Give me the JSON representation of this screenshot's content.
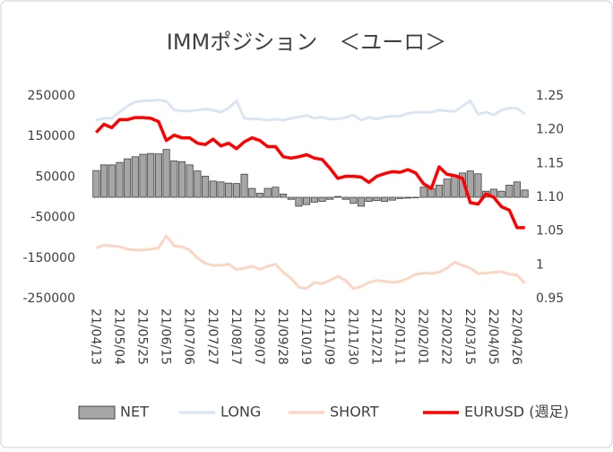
{
  "chart_data": {
    "type": "bar-line",
    "title": "IMMポジション　＜ユーロ＞",
    "categories": [
      "21/04/13",
      null,
      null,
      "21/05/04",
      null,
      null,
      "21/05/25",
      null,
      null,
      "21/06/15",
      null,
      null,
      "21/07/06",
      null,
      null,
      "21/07/27",
      null,
      null,
      "21/08/17",
      null,
      null,
      "21/09/07",
      null,
      null,
      "21/09/28",
      null,
      null,
      "21/10/19",
      null,
      null,
      "21/11/09",
      null,
      null,
      "21/11/30",
      null,
      null,
      "21/12/21",
      null,
      null,
      "22/01/11",
      null,
      null,
      "22/02/01",
      null,
      null,
      "22/02/22",
      null,
      null,
      "22/03/15",
      null,
      null,
      "22/04/05",
      null,
      null,
      "22/04/26",
      null
    ],
    "series": [
      {
        "name": "NET",
        "kind": "bar",
        "color": "#a6a6a6",
        "values": [
          66000,
          80000,
          80000,
          86000,
          95000,
          100000,
          106000,
          108000,
          107000,
          118000,
          90000,
          88000,
          80000,
          65000,
          52000,
          40000,
          38000,
          35000,
          34000,
          57000,
          22000,
          10000,
          22000,
          25000,
          8000,
          -5000,
          -22000,
          -18000,
          -12000,
          -10000,
          -5000,
          2000,
          -5000,
          -15000,
          -22000,
          -10000,
          -8000,
          -10000,
          -7000,
          -3000,
          -2000,
          0,
          25000,
          22000,
          30000,
          45000,
          55000,
          60000,
          65000,
          58000,
          15000,
          20000,
          15000,
          30000,
          38000,
          18000
        ]
      },
      {
        "name": "LONG",
        "kind": "line",
        "color": "#dce6f2",
        "values": [
          190000,
          195000,
          195000,
          210000,
          225000,
          235000,
          238000,
          238000,
          240000,
          237000,
          215000,
          213000,
          213000,
          215000,
          218000,
          215000,
          210000,
          220000,
          238000,
          195000,
          193000,
          193000,
          190000,
          193000,
          190000,
          195000,
          198000,
          202000,
          195000,
          198000,
          193000,
          193000,
          197000,
          203000,
          190000,
          197000,
          193000,
          198000,
          200000,
          200000,
          207000,
          210000,
          210000,
          210000,
          215000,
          213000,
          212000,
          225000,
          238000,
          205000,
          210000,
          203000,
          215000,
          220000,
          220000,
          205000
        ]
      },
      {
        "name": "SHORT",
        "kind": "line",
        "color": "#fbd5c5",
        "values": [
          -125000,
          -118000,
          -120000,
          -122000,
          -128000,
          -130000,
          -130000,
          -128000,
          -125000,
          -95000,
          -120000,
          -122000,
          -130000,
          -150000,
          -163000,
          -168000,
          -168000,
          -165000,
          -178000,
          -175000,
          -170000,
          -178000,
          -170000,
          -165000,
          -185000,
          -200000,
          -222000,
          -225000,
          -210000,
          -213000,
          -205000,
          -195000,
          -205000,
          -225000,
          -220000,
          -210000,
          -205000,
          -207000,
          -210000,
          -207000,
          -200000,
          -190000,
          -187000,
          -188000,
          -185000,
          -175000,
          -160000,
          -168000,
          -175000,
          -188000,
          -187000,
          -185000,
          -183000,
          -190000,
          -192000,
          -212000
        ]
      },
      {
        "name": "EURUSD (週足)",
        "kind": "line",
        "axis": "y2",
        "color": "#ff0000",
        "values": [
          1.196,
          1.208,
          1.203,
          1.215,
          1.215,
          1.218,
          1.218,
          1.217,
          1.212,
          1.184,
          1.192,
          1.188,
          1.188,
          1.18,
          1.178,
          1.186,
          1.176,
          1.18,
          1.172,
          1.182,
          1.188,
          1.184,
          1.175,
          1.175,
          1.16,
          1.158,
          1.16,
          1.163,
          1.158,
          1.156,
          1.143,
          1.128,
          1.131,
          1.131,
          1.13,
          1.122,
          1.131,
          1.135,
          1.138,
          1.137,
          1.141,
          1.136,
          1.12,
          1.113,
          1.145,
          1.134,
          1.132,
          1.128,
          1.092,
          1.09,
          1.105,
          1.1,
          1.086,
          1.081,
          1.055,
          1.055
        ]
      }
    ],
    "ylim": [
      -250000,
      250000
    ],
    "yticks": [
      -250000,
      -150000,
      -50000,
      50000,
      150000,
      250000
    ],
    "y2lim": [
      0.95,
      1.25
    ],
    "y2ticks": [
      {
        "value": 0.95,
        "label": "0.95"
      },
      1,
      {
        "value": 1.05,
        "label": "1.05"
      },
      {
        "value": 1.1,
        "label": "1.10"
      },
      {
        "value": 1.15,
        "label": "1.15"
      },
      {
        "value": 1.2,
        "label": "1.20"
      },
      {
        "value": 1.25,
        "label": "1.25"
      }
    ],
    "legend": "bottom"
  }
}
